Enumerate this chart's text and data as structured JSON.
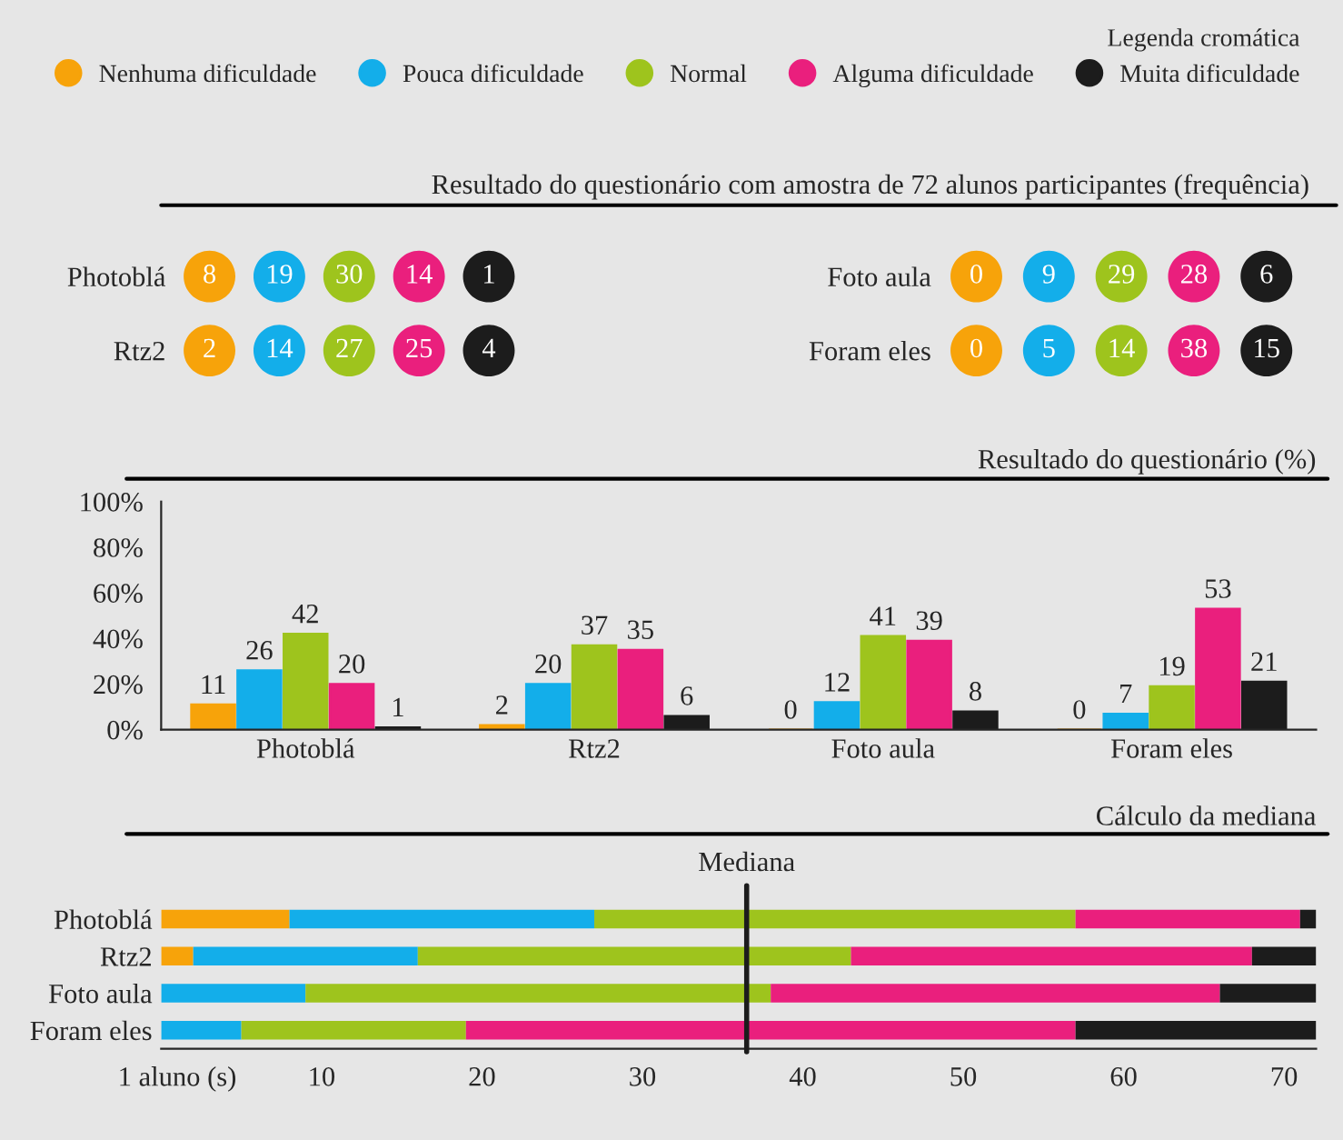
{
  "chart_data": [
    {
      "type": "other",
      "title": "Resultado do questionário com amostra de 72 alunos participantes (frequência)",
      "data_labels": true,
      "categories": [
        "Photoblá",
        "Rtz2"
      ],
      "series": [
        {
          "color": "#f7a30a",
          "values": [
            8,
            2
          ]
        },
        {
          "color": "#13aeea",
          "values": [
            19,
            14
          ]
        },
        {
          "color": "#9ec41d",
          "values": [
            30,
            27
          ]
        },
        {
          "color": "#ea1f7d",
          "values": [
            14,
            25
          ]
        },
        {
          "color": "#1c1c1c",
          "values": [
            1,
            4
          ]
        }
      ]
    },
    {
      "type": "other",
      "data_labels": true,
      "categories": [
        "Foto aula",
        "Foram eles"
      ],
      "series": [
        {
          "color": "#f7a30a",
          "values": [
            0,
            0
          ]
        },
        {
          "color": "#13aeea",
          "values": [
            9,
            5
          ]
        },
        {
          "color": "#9ec41d",
          "values": [
            29,
            14
          ]
        },
        {
          "color": "#ea1f7d",
          "values": [
            28,
            38
          ]
        },
        {
          "color": "#1c1c1c",
          "values": [
            6,
            15
          ]
        }
      ]
    },
    {
      "type": "bar",
      "title": "Resultado do questionário (%)",
      "legend_title": "Legenda cromática",
      "legend": "top",
      "data_labels": true,
      "grid": false,
      "categories": [
        "Photoblá",
        "Rtz2",
        "Foto aula",
        "Foram eles"
      ],
      "ylim": [
        0,
        100
      ],
      "yticks": [
        {
          "value": 0,
          "label": "0%"
        },
        {
          "value": 20,
          "label": "20%"
        },
        {
          "value": 40,
          "label": "40%"
        },
        {
          "value": 60,
          "label": "60%"
        },
        {
          "value": 80,
          "label": "80%"
        },
        {
          "value": 100,
          "label": "100%"
        }
      ],
      "series": [
        {
          "name": "Nenhuma dificuldade",
          "color": "#f7a30a",
          "values": [
            11,
            2,
            0,
            0
          ]
        },
        {
          "name": "Pouca dificuldade",
          "color": "#13aeea",
          "values": [
            26,
            20,
            12,
            7
          ]
        },
        {
          "name": "Normal",
          "color": "#9ec41d",
          "values": [
            42,
            37,
            41,
            19
          ]
        },
        {
          "name": "Alguma dificuldade",
          "color": "#ea1f7d",
          "values": [
            20,
            35,
            39,
            53
          ]
        },
        {
          "name": "Muita dificuldade",
          "color": "#1c1c1c",
          "values": [
            1,
            6,
            8,
            21
          ]
        }
      ]
    },
    {
      "type": "bar",
      "title": "Cálculo da mediana",
      "orientation": "horizontal",
      "stacked": true,
      "grid": false,
      "categories": [
        "Photoblá",
        "Rtz2",
        "Foto aula",
        "Foram eles"
      ],
      "xlim": [
        0,
        72
      ],
      "xticks": [
        {
          "value": 1,
          "label": "1 aluno (s)"
        },
        10,
        20,
        30,
        40,
        50,
        60,
        70
      ],
      "ref_lines": [
        {
          "axis": "x",
          "value": 36.5,
          "label": "Mediana",
          "color": "#1c1c1c"
        }
      ],
      "series": [
        {
          "color": "#f7a30a",
          "values": [
            8,
            2,
            0,
            0
          ]
        },
        {
          "color": "#13aeea",
          "values": [
            19,
            14,
            9,
            5
          ]
        },
        {
          "color": "#9ec41d",
          "values": [
            30,
            27,
            29,
            14
          ]
        },
        {
          "color": "#ea1f7d",
          "values": [
            14,
            25,
            28,
            38
          ]
        },
        {
          "color": "#1c1c1c",
          "values": [
            1,
            4,
            6,
            15
          ]
        }
      ]
    }
  ]
}
